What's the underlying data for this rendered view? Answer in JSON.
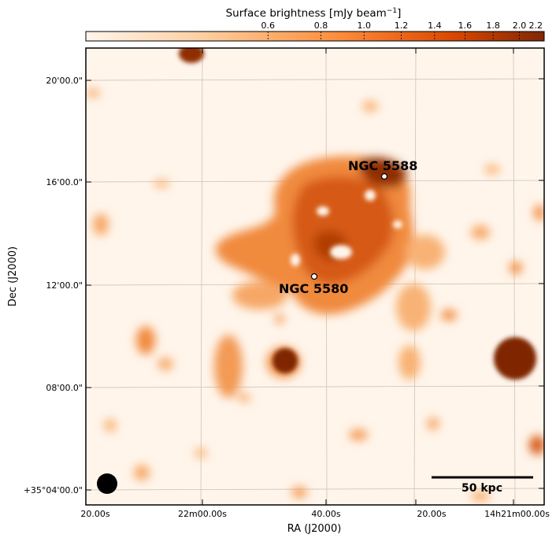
{
  "colorbar": {
    "title": "Surface brightness [mJy beam",
    "title_sup": "−1",
    "title_end": "]",
    "ticks": [
      {
        "label": "0.6",
        "value": 0.6
      },
      {
        "label": "0.8",
        "value": 0.8
      },
      {
        "label": "1.0",
        "value": 1.0
      },
      {
        "label": "1.2",
        "value": 1.2
      },
      {
        "label": "1.4",
        "value": 1.4
      },
      {
        "label": "1.6",
        "value": 1.6
      },
      {
        "label": "1.8",
        "value": 1.8
      },
      {
        "label": "2.0",
        "value": 2.0
      },
      {
        "label": "2.2",
        "value": 2.2
      }
    ],
    "colors": [
      "#fff5eb",
      "#fdd0a2",
      "#fd8d3c",
      "#d94801",
      "#7f2704"
    ]
  },
  "axes": {
    "xlabel": "RA (J2000)",
    "ylabel": "Dec (J2000)",
    "xticks": [
      "20.00s",
      "22m00.00s",
      "40.00s",
      "20.00s",
      "14h21m00.00s"
    ],
    "yticks": [
      "20'00.0\"",
      "16'00.0\"",
      "12'00.0\"",
      "08'00.0\"",
      "+35°04'00.0\""
    ]
  },
  "annotations": {
    "galaxy_a": "NGC 5588",
    "galaxy_b": "NGC 5580",
    "scale_bar": "50 kpc"
  }
}
